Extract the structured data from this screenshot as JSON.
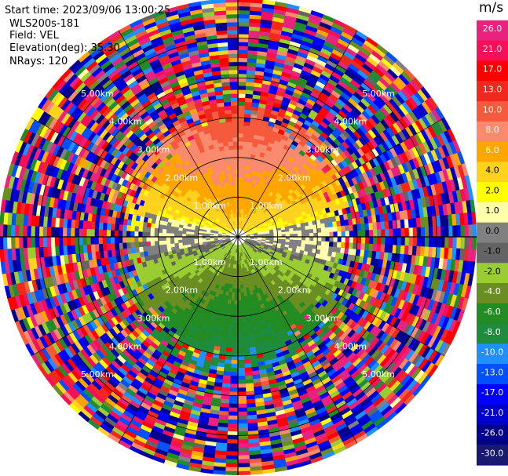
{
  "header": {
    "start_time": "Start time: 2023/09/06 13:00:25",
    "instrument": "WLS200s-181",
    "field": "Field: VEL",
    "elevation": "Elevation(deg): 35.30",
    "nrays": "NRays: 120"
  },
  "colorbar": {
    "unit": "m/s",
    "ticks": [
      "26.0",
      "21.0",
      "17.0",
      "13.0",
      "10.0",
      "8.0",
      "6.0",
      "4.0",
      "2.0",
      "1.0",
      "0.0",
      "-1.0",
      "-2.0",
      "-4.0",
      "-6.0",
      "-8.0",
      "-10.0",
      "-13.0",
      "-17.0",
      "-21.0",
      "-26.0",
      "-30.0"
    ],
    "colors": [
      "#e8237e",
      "#f70f5a",
      "#ff0000",
      "#f0281e",
      "#f55a3c",
      "#fa8a6e",
      "#ffa500",
      "#ffd21e",
      "#ffff00",
      "#ffffaa",
      "#808080",
      "#646464",
      "#9acd32",
      "#6b8e23",
      "#228b22",
      "#1e8c3c",
      "#1e90ff",
      "#0050ff",
      "#0000ff",
      "#0000cd",
      "#00008b",
      "#191970"
    ]
  },
  "chart_data": {
    "type": "heatmap",
    "projection": "polar PPI (radar scan)",
    "field": "VEL",
    "nrays": 120,
    "max_range_km": 6.0,
    "range_rings_km": [
      1.0,
      2.0,
      3.0,
      4.0,
      5.0
    ],
    "range_ring_labels": [
      "1.00km",
      "2.00km",
      "3.00km",
      "4.00km",
      "5.00km"
    ],
    "velocity_pattern": {
      "near_field_km": 2.6,
      "north_sector": "positive velocities 2 to 10 m/s (yellow/orange)",
      "south_sector": "negative velocities -2 to -8 m/s (green)",
      "east_west_axis": "near 0 m/s (grey)",
      "far_field": "noise across full scale (-30 to 26 m/s)"
    },
    "grid": true,
    "legend_position": "right colorbar"
  }
}
